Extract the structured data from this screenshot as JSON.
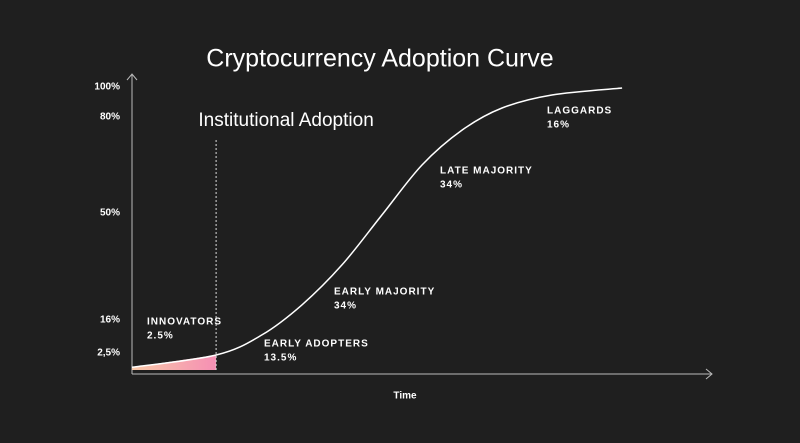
{
  "chart_data": {
    "type": "line",
    "title": "Cryptocurrency Adoption Curve",
    "x_label": "Time",
    "annotation": {
      "label": "Institutional Adoption",
      "x": 14.5
    },
    "xlim": [
      0,
      100
    ],
    "ylim": [
      0,
      100
    ],
    "yticks": [
      {
        "value": 100,
        "label": "100%"
      },
      {
        "value": 80,
        "label": "80%"
      },
      {
        "value": 50,
        "label": "50%"
      },
      {
        "value": 16,
        "label": "16%"
      },
      {
        "value": 2.5,
        "label": "2,5%"
      }
    ],
    "x": [
      0,
      14.5,
      22.4,
      29.3,
      36.2,
      43.1,
      50,
      56.9,
      63.8,
      72.4,
      84.5
    ],
    "series": [
      {
        "color": "#ffffff",
        "values": [
          0.4,
          2.2,
          9.9,
          20.8,
          33.5,
          49.4,
          65,
          75.9,
          86,
          94.7,
          99.3
        ]
      }
    ],
    "phases": [
      {
        "name": "INNOVATORS",
        "share": "2.5%"
      },
      {
        "name": "EARLY ADOPTERS",
        "share": "13.5%"
      },
      {
        "name": "EARLY MAJORITY",
        "share": "34%"
      },
      {
        "name": "LATE MAJORITY",
        "share": "34%"
      },
      {
        "name": "LAGGARDS",
        "share": "16%"
      }
    ]
  }
}
